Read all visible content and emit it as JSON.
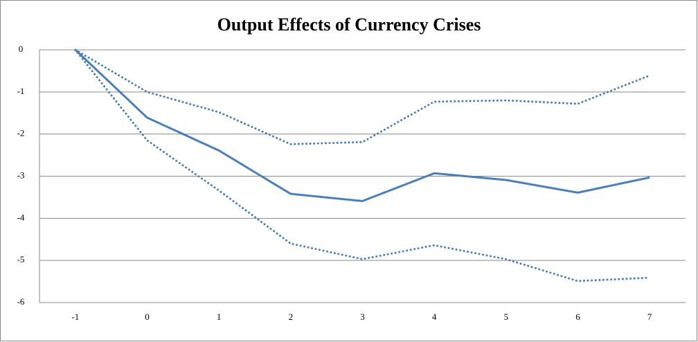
{
  "chart_data": {
    "type": "line",
    "title": "Output Effects of Currency Crises",
    "categories": [
      "-1",
      "0",
      "1",
      "2",
      "3",
      "4",
      "5",
      "6",
      "7"
    ],
    "series": [
      {
        "color": "#4a7ebb",
        "style": "solid",
        "values": [
          0,
          -1.61,
          -2.39,
          -3.42,
          -3.59,
          -2.93,
          -3.09,
          -3.39,
          -3.03
        ]
      },
      {
        "color": "#4a7ebb",
        "style": "dotted",
        "values": [
          0,
          -1.0,
          -1.48,
          -2.24,
          -2.19,
          -1.23,
          -1.2,
          -1.28,
          -0.61
        ]
      },
      {
        "color": "#4a7ebb",
        "style": "dotted",
        "values": [
          0,
          -2.15,
          -3.34,
          -4.6,
          -4.97,
          -4.64,
          -4.97,
          -5.49,
          -5.41
        ]
      }
    ],
    "ylim": [
      -6,
      0
    ],
    "yticks": [
      0,
      -1,
      -2,
      -3,
      -4,
      -5,
      -6
    ],
    "grid": true
  }
}
